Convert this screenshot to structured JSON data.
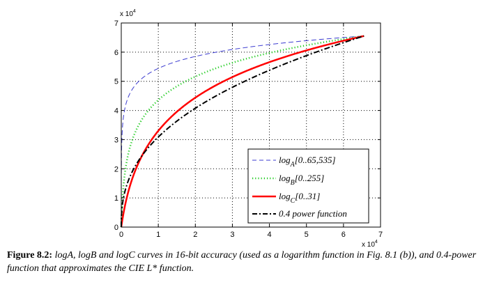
{
  "chart_data": {
    "type": "line",
    "x_multiplier_label": "x 10",
    "x_multiplier_exp": "4",
    "y_multiplier_label": "x 10",
    "y_multiplier_exp": "4",
    "xlim": [
      0,
      7
    ],
    "ylim": [
      0,
      7
    ],
    "x_ticks": [
      "0",
      "1",
      "2",
      "3",
      "4",
      "5",
      "6",
      "7"
    ],
    "y_ticks": [
      "0",
      "1",
      "2",
      "3",
      "4",
      "5",
      "6",
      "7"
    ],
    "grid": true,
    "legend_position": "bottom-right",
    "series": [
      {
        "name": "log_A",
        "legend_base": "log",
        "legend_sub": "A",
        "legend_range": "[0..65,535]",
        "color": "#3b3bd0",
        "style": "dashed",
        "scale": 65535
      },
      {
        "name": "log_B",
        "legend_base": "log",
        "legend_sub": "B",
        "legend_range": "[0..255]",
        "color": "#22cc22",
        "style": "dotted",
        "scale": 255
      },
      {
        "name": "log_C",
        "legend_base": "log",
        "legend_sub": "C",
        "legend_range": "[0..31]",
        "color": "#ff0000",
        "style": "solid",
        "scale": 31
      },
      {
        "name": "0.4 power function",
        "legend_base": "0.4 power function",
        "legend_sub": "",
        "legend_range": "",
        "color": "#000000",
        "style": "dashdot",
        "exponent": 0.4
      }
    ]
  },
  "caption": {
    "label": "Figure 8.2:",
    "text": "logA, logB and logC curves in 16-bit accuracy (used as a logarithm function in Fig. 8.1 (b)), and 0.4-power function that approximates the CIE L* function."
  }
}
